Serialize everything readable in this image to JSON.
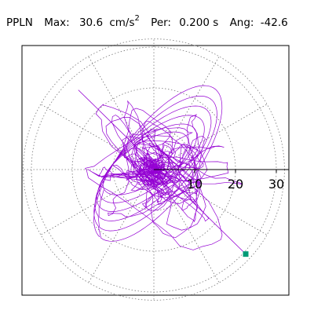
{
  "header": {
    "station": "PPLN",
    "max_label": "Max:",
    "max_value": "30.6",
    "unit_base": "cm/s",
    "unit_exp": "2",
    "per_label": "Per:",
    "per_value": "0.200 s",
    "ang_label": "Ang:",
    "ang_value": "-42.6"
  },
  "chart_data": {
    "type": "polar-particle-motion",
    "title": "",
    "radial_ticks": [
      10,
      20,
      30
    ],
    "radial_tick_labels": [
      "10",
      "20",
      "30"
    ],
    "radial_max": 32,
    "spokes_deg": [
      0,
      30,
      60,
      90,
      120,
      150,
      180,
      210,
      240,
      270,
      300,
      330
    ],
    "grid": true,
    "max_amplitude": 30.6,
    "angle_deg": -42.6,
    "trace_color": "#9400d3",
    "marker_color": "#009b77",
    "endpoint": {
      "x": 22.5,
      "y": -20.7
    }
  }
}
